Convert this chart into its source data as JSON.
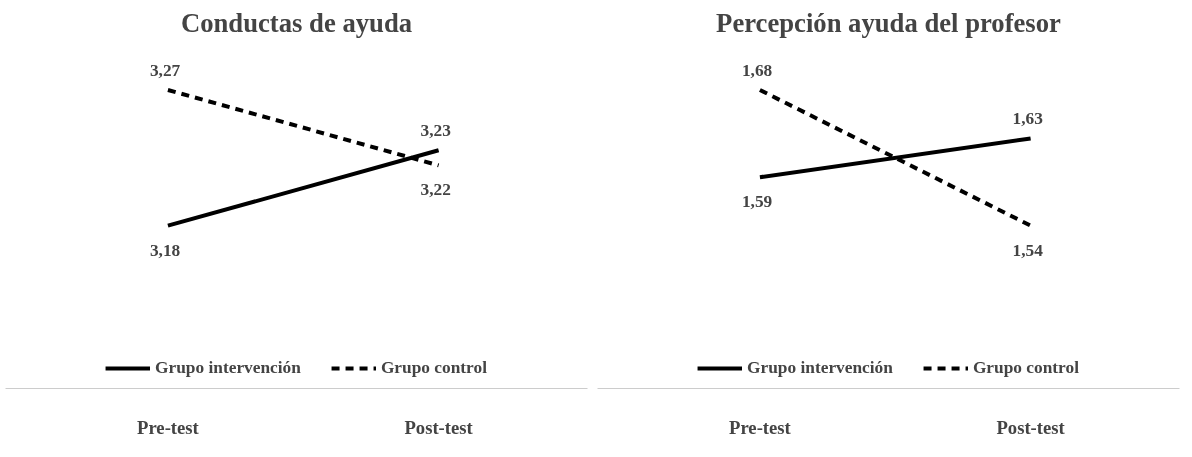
{
  "chart_data": [
    {
      "type": "line",
      "title": "Conductas de ayuda",
      "categories": [
        "Pre-test",
        "Post-test"
      ],
      "legend": "bottom",
      "marker": "none",
      "grid": false,
      "series": [
        {
          "name": "Grupo intervención",
          "color": "#000000",
          "line_style": "solid",
          "values": [
            3.18,
            3.23
          ],
          "value_labels": [
            "3,18",
            "3,23"
          ]
        },
        {
          "name": "Grupo control",
          "color": "#000000",
          "line_style": "dashed",
          "values": [
            3.27,
            3.22
          ],
          "value_labels": [
            "3,27",
            "3,22"
          ]
        }
      ]
    },
    {
      "type": "line",
      "title": "Percepción ayuda del profesor",
      "categories": [
        "Pre-test",
        "Post-test"
      ],
      "legend": "bottom",
      "marker": "none",
      "grid": false,
      "series": [
        {
          "name": "Grupo intervención",
          "color": "#000000",
          "line_style": "solid",
          "values": [
            1.59,
            1.63
          ],
          "value_labels": [
            "1,59",
            "1,63"
          ]
        },
        {
          "name": "Grupo control",
          "color": "#000000",
          "line_style": "dashed",
          "values": [
            1.68,
            1.54
          ],
          "value_labels": [
            "1,68",
            "1,54"
          ]
        }
      ]
    }
  ]
}
